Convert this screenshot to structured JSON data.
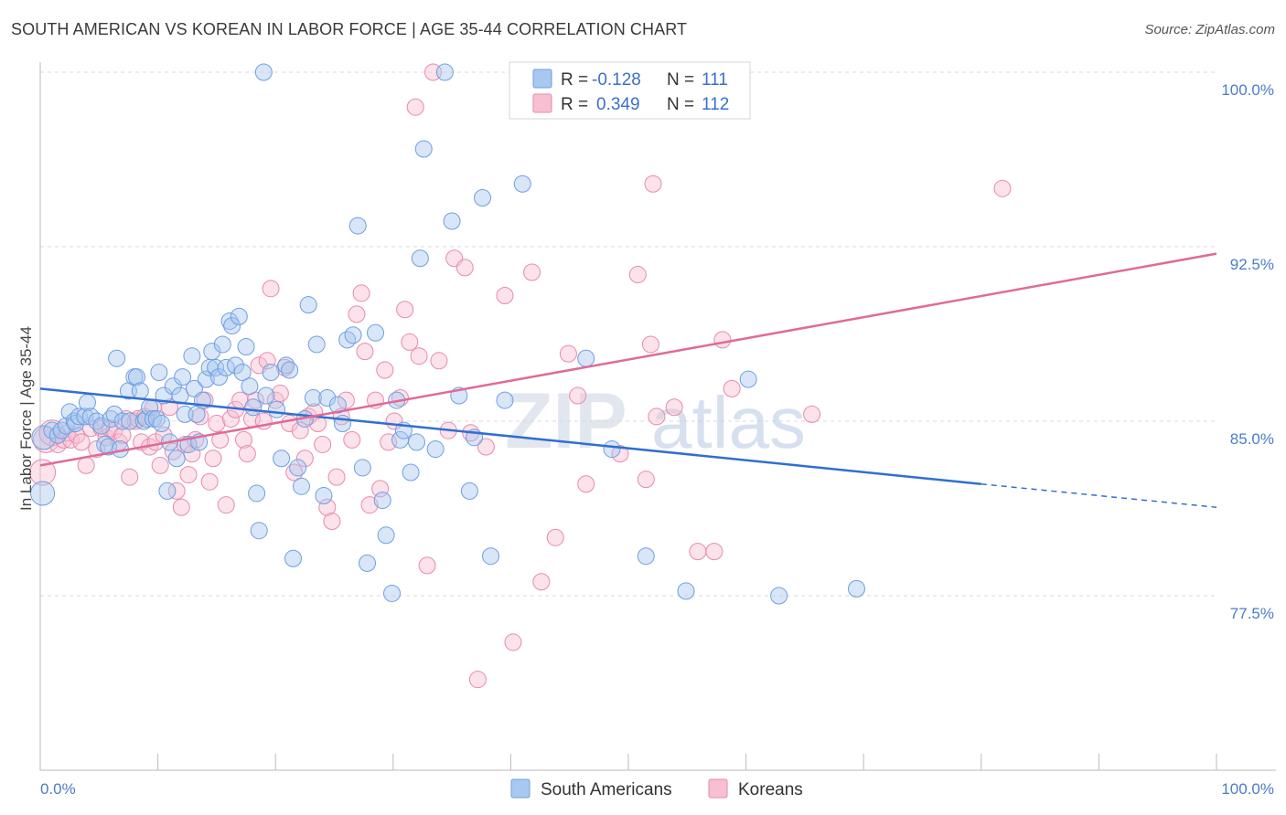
{
  "title": "SOUTH AMERICAN VS KOREAN IN LABOR FORCE | AGE 35-44 CORRELATION CHART",
  "source": "Source: ZipAtlas.com",
  "watermark": {
    "zip": "ZIP",
    "atlas": "atlas"
  },
  "colors": {
    "blue_fill": "#a8c8f0",
    "blue_stroke": "#6e9fe0",
    "blue_line": "#2f6fd1",
    "pink_fill": "#f7bfd2",
    "pink_stroke": "#e98aaa",
    "pink_line": "#e06a98",
    "grid": "#d9d9d9",
    "tick_text": "#4a7cc9"
  },
  "legend": {
    "row1": {
      "r_label": "R = ",
      "r_value": "-0.128",
      "n_label": "N = ",
      "n_value": "111"
    },
    "row2": {
      "r_label": "R = ",
      "r_value": "0.349",
      "n_label": "N = ",
      "n_value": "112"
    }
  },
  "chart_data": {
    "type": "scatter",
    "title": "SOUTH AMERICAN VS KOREAN IN LABOR FORCE | AGE 35-44 CORRELATION CHART",
    "xlabel": "",
    "ylabel": "In Labor Force | Age 35-44",
    "xlim": [
      0,
      100
    ],
    "ylim": [
      70.2,
      101.2
    ],
    "x_tick_labels": [
      "0.0%",
      "100.0%"
    ],
    "y_ticks": [
      77.5,
      85.0,
      92.5,
      100.0
    ],
    "y_tick_labels": [
      "77.5%",
      "85.0%",
      "92.5%",
      "100.0%"
    ],
    "legend": [
      "South Americans",
      "Koreans"
    ],
    "series": [
      {
        "name": "South Americans",
        "R": -0.128,
        "N": 111,
        "trend": {
          "x": [
            0,
            80
          ],
          "y": [
            86.4,
            82.3
          ],
          "dashed_to": [
            100,
            81.3
          ]
        },
        "points": [
          [
            0.3,
            84.3
          ],
          [
            0.2,
            81.9
          ],
          [
            1.0,
            84.6
          ],
          [
            1.5,
            84.4
          ],
          [
            1.8,
            84.6
          ],
          [
            2.2,
            84.8
          ],
          [
            2.5,
            85.4
          ],
          [
            2.9,
            85.0
          ],
          [
            3.0,
            84.9
          ],
          [
            3.3,
            85.2
          ],
          [
            3.8,
            85.2
          ],
          [
            4.0,
            85.8
          ],
          [
            4.3,
            85.2
          ],
          [
            4.8,
            85.0
          ],
          [
            5.2,
            84.8
          ],
          [
            5.5,
            84.0
          ],
          [
            5.8,
            83.9
          ],
          [
            6.0,
            85.1
          ],
          [
            6.3,
            85.3
          ],
          [
            6.5,
            87.7
          ],
          [
            6.8,
            83.8
          ],
          [
            7.0,
            85.0
          ],
          [
            7.5,
            86.3
          ],
          [
            7.6,
            85.0
          ],
          [
            8.0,
            86.9
          ],
          [
            8.2,
            86.9
          ],
          [
            8.5,
            86.3
          ],
          [
            8.8,
            85.0
          ],
          [
            9.0,
            85.1
          ],
          [
            9.3,
            85.6
          ],
          [
            9.6,
            85.1
          ],
          [
            9.9,
            85.1
          ],
          [
            10.1,
            87.1
          ],
          [
            10.3,
            84.9
          ],
          [
            10.5,
            86.1
          ],
          [
            10.8,
            82.0
          ],
          [
            11.0,
            84.1
          ],
          [
            11.3,
            86.5
          ],
          [
            11.6,
            83.4
          ],
          [
            11.9,
            86.1
          ],
          [
            12.1,
            86.9
          ],
          [
            12.3,
            85.3
          ],
          [
            12.6,
            84.0
          ],
          [
            12.9,
            87.8
          ],
          [
            13.1,
            86.4
          ],
          [
            13.3,
            85.3
          ],
          [
            13.5,
            84.1
          ],
          [
            13.8,
            85.9
          ],
          [
            14.1,
            86.8
          ],
          [
            14.4,
            87.3
          ],
          [
            14.6,
            88.0
          ],
          [
            14.9,
            87.3
          ],
          [
            15.2,
            86.9
          ],
          [
            15.5,
            88.3
          ],
          [
            15.8,
            87.3
          ],
          [
            16.1,
            89.3
          ],
          [
            16.3,
            89.1
          ],
          [
            16.6,
            87.4
          ],
          [
            16.9,
            89.5
          ],
          [
            17.2,
            87.1
          ],
          [
            17.5,
            88.2
          ],
          [
            17.8,
            86.5
          ],
          [
            18.1,
            85.6
          ],
          [
            18.4,
            81.9
          ],
          [
            18.6,
            80.3
          ],
          [
            19.0,
            100.0
          ],
          [
            19.2,
            86.1
          ],
          [
            19.6,
            87.1
          ],
          [
            20.1,
            85.5
          ],
          [
            20.5,
            83.4
          ],
          [
            20.9,
            87.4
          ],
          [
            21.2,
            87.2
          ],
          [
            21.5,
            79.1
          ],
          [
            21.9,
            83.0
          ],
          [
            22.2,
            82.2
          ],
          [
            22.5,
            85.1
          ],
          [
            22.8,
            90.0
          ],
          [
            23.2,
            86.0
          ],
          [
            23.5,
            88.3
          ],
          [
            24.1,
            81.8
          ],
          [
            24.4,
            86.0
          ],
          [
            25.3,
            85.7
          ],
          [
            25.7,
            84.9
          ],
          [
            26.1,
            88.5
          ],
          [
            26.6,
            88.7
          ],
          [
            27.0,
            93.4
          ],
          [
            27.4,
            83.0
          ],
          [
            27.8,
            78.9
          ],
          [
            28.5,
            88.8
          ],
          [
            29.1,
            81.6
          ],
          [
            29.4,
            80.1
          ],
          [
            29.9,
            77.6
          ],
          [
            30.3,
            85.9
          ],
          [
            30.6,
            84.2
          ],
          [
            30.9,
            84.6
          ],
          [
            31.5,
            82.8
          ],
          [
            32.0,
            84.1
          ],
          [
            32.3,
            92.0
          ],
          [
            32.6,
            96.7
          ],
          [
            33.6,
            83.8
          ],
          [
            34.4,
            100.0
          ],
          [
            35.0,
            93.6
          ],
          [
            35.6,
            86.1
          ],
          [
            36.5,
            82.0
          ],
          [
            36.9,
            84.3
          ],
          [
            37.6,
            94.6
          ],
          [
            38.3,
            79.2
          ],
          [
            39.5,
            85.9
          ],
          [
            41.0,
            95.2
          ],
          [
            46.4,
            87.7
          ],
          [
            48.6,
            83.8
          ],
          [
            51.5,
            79.2
          ],
          [
            54.9,
            77.7
          ],
          [
            60.2,
            86.8
          ],
          [
            62.8,
            77.5
          ],
          [
            69.4,
            77.8
          ]
        ]
      },
      {
        "name": "Koreans",
        "R": 0.349,
        "N": 112,
        "trend": {
          "x": [
            0,
            100
          ],
          "y": [
            83.1,
            92.2
          ]
        },
        "points": [
          [
            0.2,
            82.8
          ],
          [
            0.5,
            84.2
          ],
          [
            1.0,
            84.5
          ],
          [
            1.5,
            84.0
          ],
          [
            2.0,
            84.2
          ],
          [
            2.3,
            84.5
          ],
          [
            2.6,
            84.2
          ],
          [
            3.1,
            84.4
          ],
          [
            3.5,
            84.1
          ],
          [
            3.9,
            83.1
          ],
          [
            4.3,
            84.7
          ],
          [
            4.8,
            83.8
          ],
          [
            5.2,
            84.7
          ],
          [
            5.6,
            84.3
          ],
          [
            5.9,
            84.7
          ],
          [
            6.3,
            84.6
          ],
          [
            6.7,
            84.1
          ],
          [
            7.0,
            84.4
          ],
          [
            7.3,
            85.1
          ],
          [
            7.6,
            82.6
          ],
          [
            8.1,
            85.0
          ],
          [
            8.3,
            85.1
          ],
          [
            8.6,
            84.1
          ],
          [
            8.9,
            85.2
          ],
          [
            9.3,
            83.9
          ],
          [
            9.6,
            85.6
          ],
          [
            9.8,
            84.1
          ],
          [
            10.2,
            83.1
          ],
          [
            10.5,
            84.4
          ],
          [
            11.0,
            85.6
          ],
          [
            11.3,
            83.7
          ],
          [
            11.6,
            82.0
          ],
          [
            12.0,
            81.3
          ],
          [
            12.3,
            84.0
          ],
          [
            12.6,
            82.7
          ],
          [
            12.9,
            83.6
          ],
          [
            13.2,
            84.2
          ],
          [
            13.6,
            85.2
          ],
          [
            14.0,
            85.9
          ],
          [
            14.4,
            82.4
          ],
          [
            14.7,
            83.4
          ],
          [
            15.0,
            84.9
          ],
          [
            15.3,
            84.2
          ],
          [
            15.8,
            81.4
          ],
          [
            16.2,
            85.1
          ],
          [
            16.6,
            85.5
          ],
          [
            17.0,
            85.9
          ],
          [
            17.3,
            84.2
          ],
          [
            17.6,
            83.6
          ],
          [
            18.0,
            85.1
          ],
          [
            18.3,
            85.9
          ],
          [
            18.6,
            87.4
          ],
          [
            19.0,
            85.0
          ],
          [
            19.3,
            87.6
          ],
          [
            19.6,
            90.7
          ],
          [
            20.0,
            85.9
          ],
          [
            20.4,
            86.2
          ],
          [
            20.8,
            87.3
          ],
          [
            21.2,
            84.9
          ],
          [
            21.6,
            82.8
          ],
          [
            22.1,
            84.6
          ],
          [
            22.5,
            83.4
          ],
          [
            22.8,
            85.2
          ],
          [
            23.3,
            85.4
          ],
          [
            23.6,
            84.9
          ],
          [
            24.0,
            84.0
          ],
          [
            24.4,
            81.3
          ],
          [
            24.8,
            80.7
          ],
          [
            25.2,
            82.6
          ],
          [
            25.6,
            85.2
          ],
          [
            26.0,
            85.9
          ],
          [
            26.5,
            84.2
          ],
          [
            26.9,
            89.6
          ],
          [
            27.3,
            90.5
          ],
          [
            27.6,
            88.0
          ],
          [
            28.0,
            81.4
          ],
          [
            28.5,
            85.9
          ],
          [
            28.9,
            82.1
          ],
          [
            29.3,
            87.2
          ],
          [
            29.6,
            84.1
          ],
          [
            30.1,
            85.0
          ],
          [
            30.6,
            86.0
          ],
          [
            31.0,
            89.8
          ],
          [
            31.4,
            88.4
          ],
          [
            31.9,
            98.5
          ],
          [
            32.2,
            87.8
          ],
          [
            32.9,
            78.8
          ],
          [
            33.4,
            100.0
          ],
          [
            33.9,
            87.6
          ],
          [
            34.7,
            84.6
          ],
          [
            35.2,
            92.0
          ],
          [
            36.1,
            91.6
          ],
          [
            36.6,
            84.5
          ],
          [
            37.2,
            73.9
          ],
          [
            37.9,
            83.9
          ],
          [
            39.5,
            90.4
          ],
          [
            40.2,
            75.5
          ],
          [
            41.8,
            91.4
          ],
          [
            42.6,
            78.1
          ],
          [
            43.8,
            80.0
          ],
          [
            44.9,
            87.9
          ],
          [
            45.7,
            86.1
          ],
          [
            46.4,
            82.3
          ],
          [
            49.3,
            83.6
          ],
          [
            50.8,
            91.3
          ],
          [
            51.5,
            82.5
          ],
          [
            51.9,
            88.3
          ],
          [
            52.1,
            95.2
          ],
          [
            52.4,
            85.2
          ],
          [
            53.9,
            85.6
          ],
          [
            55.9,
            79.4
          ],
          [
            57.3,
            79.4
          ],
          [
            58.0,
            88.5
          ],
          [
            58.8,
            86.4
          ],
          [
            65.6,
            85.3
          ],
          [
            81.8,
            95.0
          ]
        ]
      }
    ]
  },
  "bottom_legend": {
    "series1": "South Americans",
    "series2": "Koreans"
  }
}
